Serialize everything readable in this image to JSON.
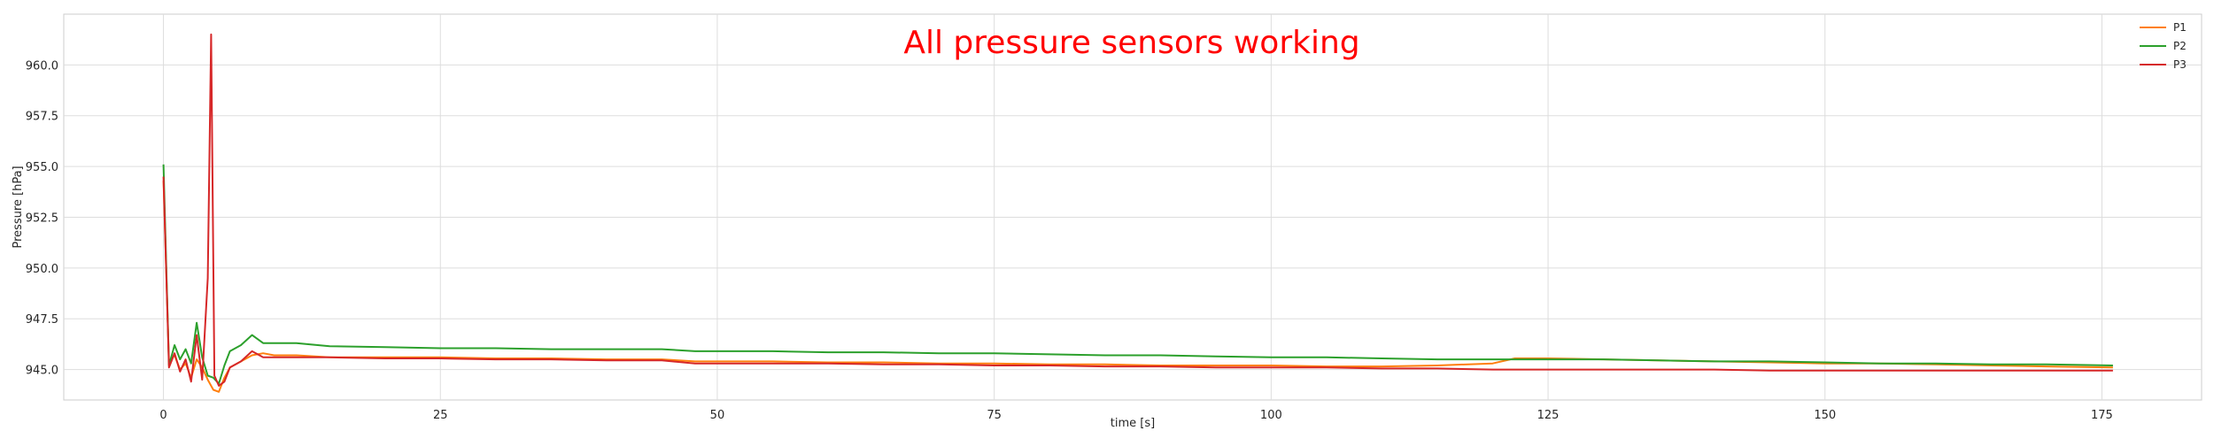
{
  "chart_data": {
    "type": "line",
    "title": "All pressure sensors working",
    "xlabel": "time [s]",
    "ylabel": "Pressure [hPa]",
    "xlim": [
      -9,
      184
    ],
    "ylim": [
      943.5,
      962.5
    ],
    "xticks": [
      0,
      25,
      50,
      75,
      100,
      125,
      150,
      175
    ],
    "xtick_labels": [
      "0",
      "25",
      "50",
      "75",
      "100",
      "125",
      "150",
      "175"
    ],
    "yticks": [
      945.0,
      947.5,
      950.0,
      952.5,
      955.0,
      957.5,
      960.0
    ],
    "ytick_labels": [
      "945.0",
      "947.5",
      "950.0",
      "952.5",
      "955.0",
      "957.5",
      "960.0"
    ],
    "grid": true,
    "legend_position": "top-right",
    "colors": {
      "P1": "#ff7f0e",
      "P2": "#2ca02c",
      "P3": "#d62728",
      "title": "#ff0000",
      "grid": "#dddddd"
    },
    "series": [
      {
        "name": "P1",
        "color": "#ff7f0e",
        "points": [
          [
            0,
            954.3
          ],
          [
            0.5,
            945.4
          ],
          [
            1,
            945.7
          ],
          [
            1.5,
            945.0
          ],
          [
            2,
            945.3
          ],
          [
            2.5,
            944.6
          ],
          [
            3,
            945.5
          ],
          [
            3.5,
            945.1
          ],
          [
            4,
            944.5
          ],
          [
            4.5,
            944.0
          ],
          [
            5,
            943.9
          ],
          [
            5.5,
            944.6
          ],
          [
            6,
            945.1
          ],
          [
            7,
            945.4
          ],
          [
            8,
            945.7
          ],
          [
            9,
            945.8
          ],
          [
            10,
            945.7
          ],
          [
            12,
            945.7
          ],
          [
            15,
            945.6
          ],
          [
            20,
            945.6
          ],
          [
            25,
            945.6
          ],
          [
            30,
            945.55
          ],
          [
            35,
            945.55
          ],
          [
            40,
            945.5
          ],
          [
            45,
            945.5
          ],
          [
            48,
            945.4
          ],
          [
            50,
            945.4
          ],
          [
            55,
            945.4
          ],
          [
            60,
            945.35
          ],
          [
            65,
            945.35
          ],
          [
            70,
            945.3
          ],
          [
            75,
            945.3
          ],
          [
            80,
            945.25
          ],
          [
            85,
            945.25
          ],
          [
            90,
            945.2
          ],
          [
            95,
            945.2
          ],
          [
            100,
            945.2
          ],
          [
            105,
            945.15
          ],
          [
            110,
            945.15
          ],
          [
            115,
            945.2
          ],
          [
            120,
            945.3
          ],
          [
            122,
            945.55
          ],
          [
            125,
            945.55
          ],
          [
            130,
            945.5
          ],
          [
            135,
            945.45
          ],
          [
            140,
            945.4
          ],
          [
            145,
            945.35
          ],
          [
            150,
            945.3
          ],
          [
            155,
            945.3
          ],
          [
            160,
            945.25
          ],
          [
            165,
            945.2
          ],
          [
            170,
            945.15
          ],
          [
            176,
            945.1
          ]
        ]
      },
      {
        "name": "P2",
        "color": "#2ca02c",
        "points": [
          [
            0,
            955.1
          ],
          [
            0.5,
            945.2
          ],
          [
            1,
            946.2
          ],
          [
            1.5,
            945.5
          ],
          [
            2,
            946.0
          ],
          [
            2.5,
            945.3
          ],
          [
            3,
            947.3
          ],
          [
            3.5,
            945.6
          ],
          [
            4,
            944.7
          ],
          [
            4.5,
            944.6
          ],
          [
            5,
            944.3
          ],
          [
            5.5,
            945.2
          ],
          [
            6,
            945.9
          ],
          [
            7,
            946.2
          ],
          [
            8,
            946.7
          ],
          [
            9,
            946.3
          ],
          [
            10,
            946.3
          ],
          [
            12,
            946.3
          ],
          [
            15,
            946.15
          ],
          [
            20,
            946.1
          ],
          [
            25,
            946.05
          ],
          [
            30,
            946.05
          ],
          [
            35,
            946.0
          ],
          [
            40,
            946.0
          ],
          [
            45,
            946.0
          ],
          [
            48,
            945.9
          ],
          [
            50,
            945.9
          ],
          [
            55,
            945.9
          ],
          [
            60,
            945.85
          ],
          [
            65,
            945.85
          ],
          [
            70,
            945.8
          ],
          [
            75,
            945.8
          ],
          [
            80,
            945.75
          ],
          [
            85,
            945.7
          ],
          [
            90,
            945.7
          ],
          [
            95,
            945.65
          ],
          [
            100,
            945.6
          ],
          [
            105,
            945.6
          ],
          [
            110,
            945.55
          ],
          [
            115,
            945.5
          ],
          [
            120,
            945.5
          ],
          [
            125,
            945.5
          ],
          [
            130,
            945.5
          ],
          [
            135,
            945.45
          ],
          [
            140,
            945.4
          ],
          [
            145,
            945.4
          ],
          [
            150,
            945.35
          ],
          [
            155,
            945.3
          ],
          [
            160,
            945.3
          ],
          [
            165,
            945.25
          ],
          [
            170,
            945.25
          ],
          [
            176,
            945.2
          ]
        ]
      },
      {
        "name": "P3",
        "color": "#d62728",
        "points": [
          [
            0,
            954.5
          ],
          [
            0.5,
            945.1
          ],
          [
            1,
            945.8
          ],
          [
            1.5,
            944.9
          ],
          [
            2,
            945.5
          ],
          [
            2.5,
            944.4
          ],
          [
            3,
            946.7
          ],
          [
            3.5,
            944.5
          ],
          [
            4,
            949.5
          ],
          [
            4.3,
            961.5
          ],
          [
            4.6,
            944.7
          ],
          [
            5,
            944.2
          ],
          [
            5.5,
            944.4
          ],
          [
            6,
            945.1
          ],
          [
            7,
            945.4
          ],
          [
            8,
            945.9
          ],
          [
            9,
            945.6
          ],
          [
            10,
            945.6
          ],
          [
            12,
            945.6
          ],
          [
            15,
            945.6
          ],
          [
            20,
            945.55
          ],
          [
            25,
            945.55
          ],
          [
            30,
            945.5
          ],
          [
            35,
            945.5
          ],
          [
            40,
            945.45
          ],
          [
            45,
            945.45
          ],
          [
            48,
            945.3
          ],
          [
            50,
            945.3
          ],
          [
            55,
            945.3
          ],
          [
            60,
            945.3
          ],
          [
            65,
            945.25
          ],
          [
            70,
            945.25
          ],
          [
            75,
            945.2
          ],
          [
            80,
            945.2
          ],
          [
            85,
            945.15
          ],
          [
            90,
            945.15
          ],
          [
            95,
            945.1
          ],
          [
            100,
            945.1
          ],
          [
            105,
            945.1
          ],
          [
            110,
            945.05
          ],
          [
            115,
            945.05
          ],
          [
            120,
            945.0
          ],
          [
            125,
            945.0
          ],
          [
            130,
            945.0
          ],
          [
            135,
            945.0
          ],
          [
            140,
            945.0
          ],
          [
            145,
            944.95
          ],
          [
            150,
            944.95
          ],
          [
            155,
            944.95
          ],
          [
            160,
            944.95
          ],
          [
            165,
            944.95
          ],
          [
            170,
            944.95
          ],
          [
            176,
            944.95
          ]
        ]
      }
    ]
  }
}
